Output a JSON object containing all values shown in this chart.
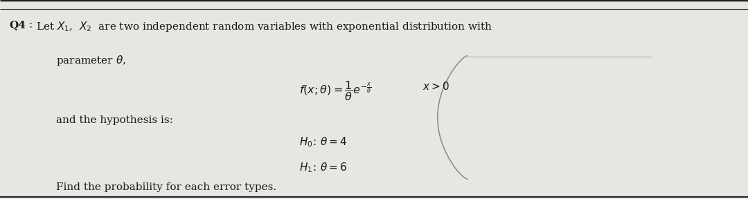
{
  "background_color": "#e8e6e0",
  "text_color": "#1a1a1a",
  "q4_label": "Q4",
  "line1_text": "Let $X_1$,  $X_2$  are two independent random variables with exponential distribution with",
  "line2_text": "parameter $\\theta$,",
  "formula_text": "$f(x;\\theta) = \\dfrac{1}{\\theta}e^{-\\frac{x}{\\theta}}$",
  "xgt0_text": "$x>0$",
  "hypothesis_intro": "and the hypothesis is:",
  "h0_text": "$H_0\\!:\\: \\theta = 4$",
  "h1_text": "$H_1\\!:\\: \\theta = 6$",
  "conclusion_text": "Find the probability for each error types.",
  "figsize": [
    10.8,
    2.88
  ],
  "dpi": 100
}
